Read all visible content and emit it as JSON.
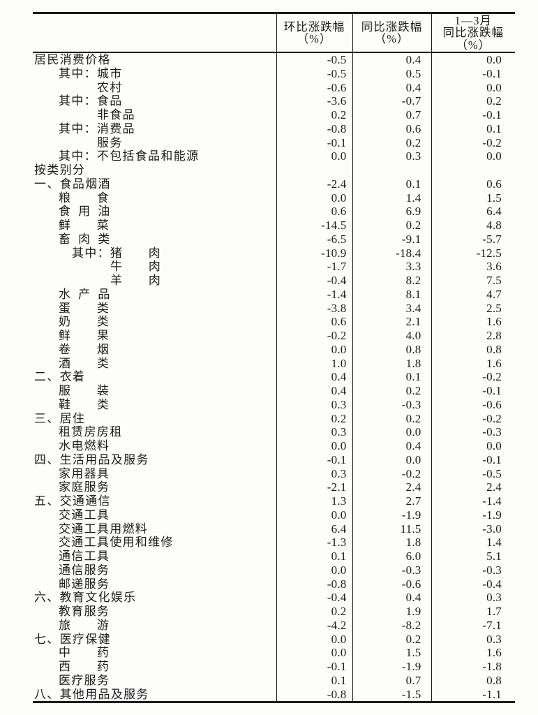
{
  "colors": {
    "background": "#fdfdfc",
    "text": "#1b1b1b",
    "rule": "#1b1b1b"
  },
  "table": {
    "title_semantic": "consumer-price-change-by-category",
    "corner_header": "",
    "columns": [
      {
        "id": "mom-change",
        "header_lines": [
          "环比涨跌幅",
          "（%）"
        ]
      },
      {
        "id": "yoy-change",
        "header_lines": [
          "同比涨跌幅",
          "（%）"
        ]
      },
      {
        "id": "ytd-yoy-change",
        "header_lines": [
          "1—3月",
          "同比涨跌幅",
          "（%）"
        ]
      }
    ],
    "rows": [
      {
        "prefix": "",
        "label": "居民消费价格",
        "level": "top",
        "values": [
          "-0.5",
          "0.4",
          "0.0"
        ]
      },
      {
        "prefix": "其中：",
        "label": "城市",
        "level": "mid",
        "values": [
          "-0.5",
          "0.5",
          "-0.1"
        ]
      },
      {
        "prefix": "",
        "label": "农村",
        "level": "mid2",
        "values": [
          "-0.6",
          "0.4",
          "0.0"
        ]
      },
      {
        "prefix": "其中：",
        "label": "食品",
        "level": "mid",
        "values": [
          "-3.6",
          "-0.7",
          "0.2"
        ]
      },
      {
        "prefix": "",
        "label": "非食品",
        "level": "mid2",
        "values": [
          "0.2",
          "0.7",
          "-0.1"
        ]
      },
      {
        "prefix": "其中：",
        "label": "消费品",
        "level": "mid",
        "values": [
          "-0.8",
          "0.6",
          "0.1"
        ]
      },
      {
        "prefix": "",
        "label": "服务",
        "level": "mid2",
        "values": [
          "-0.1",
          "0.2",
          "-0.2"
        ]
      },
      {
        "prefix": "其中：",
        "label": "不包括食品和能源",
        "level": "mid",
        "values": [
          "0.0",
          "0.3",
          "0.0"
        ]
      },
      {
        "prefix": "",
        "label": "按类别分",
        "level": "top",
        "values": [
          "",
          "",
          ""
        ]
      },
      {
        "prefix": "一、",
        "label": "食品烟酒",
        "level": "top",
        "values": [
          "-2.4",
          "0.1",
          "0.6"
        ]
      },
      {
        "prefix": "",
        "label": "粮　　食",
        "level": "mid",
        "values": [
          "0.0",
          "1.4",
          "1.5"
        ]
      },
      {
        "prefix": "",
        "label": "食 用 油",
        "level": "mid",
        "values": [
          "0.6",
          "6.9",
          "6.4"
        ]
      },
      {
        "prefix": "",
        "label": "鲜　　菜",
        "level": "mid",
        "values": [
          "-14.5",
          "0.2",
          "4.8"
        ]
      },
      {
        "prefix": "",
        "label": "畜 肉 类",
        "level": "mid",
        "values": [
          "-6.5",
          "-9.1",
          "-5.7"
        ]
      },
      {
        "prefix": "其中：",
        "label": "猪　　肉",
        "level": "deep",
        "values": [
          "-10.9",
          "-18.4",
          "-12.5"
        ]
      },
      {
        "prefix": "",
        "label": "牛　　肉",
        "level": "deep2",
        "values": [
          "-1.7",
          "3.3",
          "3.6"
        ]
      },
      {
        "prefix": "",
        "label": "羊　　肉",
        "level": "deep2",
        "values": [
          "-0.4",
          "8.2",
          "7.5"
        ]
      },
      {
        "prefix": "",
        "label": "水 产 品",
        "level": "mid",
        "values": [
          "-1.4",
          "8.1",
          "4.7"
        ]
      },
      {
        "prefix": "",
        "label": "蛋　　类",
        "level": "mid",
        "values": [
          "-3.8",
          "3.4",
          "2.5"
        ]
      },
      {
        "prefix": "",
        "label": "奶　　类",
        "level": "mid",
        "values": [
          "0.6",
          "2.1",
          "1.6"
        ]
      },
      {
        "prefix": "",
        "label": "鲜　　果",
        "level": "mid",
        "values": [
          "-0.2",
          "4.0",
          "2.8"
        ]
      },
      {
        "prefix": "",
        "label": "卷　　烟",
        "level": "mid",
        "values": [
          "0.0",
          "0.8",
          "0.8"
        ]
      },
      {
        "prefix": "",
        "label": "酒　　类",
        "level": "mid",
        "values": [
          "1.0",
          "1.8",
          "1.6"
        ]
      },
      {
        "prefix": "二、",
        "label": "衣着",
        "level": "top",
        "values": [
          "0.4",
          "0.1",
          "-0.2"
        ]
      },
      {
        "prefix": "",
        "label": "服　　装",
        "level": "mid",
        "values": [
          "0.4",
          "0.2",
          "-0.1"
        ]
      },
      {
        "prefix": "",
        "label": "鞋　　类",
        "level": "mid",
        "values": [
          "0.3",
          "-0.3",
          "-0.6"
        ]
      },
      {
        "prefix": "三、",
        "label": "居住",
        "level": "top",
        "values": [
          "0.2",
          "0.2",
          "-0.2"
        ]
      },
      {
        "prefix": "",
        "label": "租赁房房租",
        "level": "mid",
        "values": [
          "0.3",
          "0.0",
          "-0.3"
        ]
      },
      {
        "prefix": "",
        "label": "水电燃料",
        "level": "mid",
        "values": [
          "0.0",
          "0.4",
          "0.0"
        ]
      },
      {
        "prefix": "四、",
        "label": "生活用品及服务",
        "level": "top",
        "values": [
          "-0.1",
          "0.0",
          "-0.1"
        ]
      },
      {
        "prefix": "",
        "label": "家用器具",
        "level": "mid",
        "values": [
          "0.3",
          "-0.2",
          "-0.5"
        ]
      },
      {
        "prefix": "",
        "label": "家庭服务",
        "level": "mid",
        "values": [
          "-2.1",
          "2.4",
          "2.4"
        ]
      },
      {
        "prefix": "五、",
        "label": "交通通信",
        "level": "top",
        "values": [
          "1.3",
          "2.7",
          "-1.4"
        ]
      },
      {
        "prefix": "",
        "label": "交通工具",
        "level": "mid",
        "values": [
          "0.0",
          "-1.9",
          "-1.9"
        ]
      },
      {
        "prefix": "",
        "label": "交通工具用燃料",
        "level": "mid",
        "values": [
          "6.4",
          "11.5",
          "-3.0"
        ]
      },
      {
        "prefix": "",
        "label": "交通工具使用和维修",
        "level": "mid",
        "values": [
          "-1.3",
          "1.8",
          "1.4"
        ]
      },
      {
        "prefix": "",
        "label": "通信工具",
        "level": "mid",
        "values": [
          "0.1",
          "6.0",
          "5.1"
        ]
      },
      {
        "prefix": "",
        "label": "通信服务",
        "level": "mid",
        "values": [
          "0.0",
          "-0.3",
          "-0.3"
        ]
      },
      {
        "prefix": "",
        "label": "邮递服务",
        "level": "mid",
        "values": [
          "-0.8",
          "-0.6",
          "-0.4"
        ]
      },
      {
        "prefix": "六、",
        "label": "教育文化娱乐",
        "level": "top",
        "values": [
          "-0.4",
          "0.4",
          "0.3"
        ]
      },
      {
        "prefix": "",
        "label": "教育服务",
        "level": "mid",
        "values": [
          "0.2",
          "1.9",
          "1.7"
        ]
      },
      {
        "prefix": "",
        "label": "旅　　游",
        "level": "mid",
        "values": [
          "-4.2",
          "-8.2",
          "-7.1"
        ]
      },
      {
        "prefix": "七、",
        "label": "医疗保健",
        "level": "top",
        "values": [
          "0.0",
          "0.2",
          "0.3"
        ]
      },
      {
        "prefix": "",
        "label": "中　　药",
        "level": "mid",
        "values": [
          "0.0",
          "1.5",
          "1.6"
        ]
      },
      {
        "prefix": "",
        "label": "西　　药",
        "level": "mid",
        "values": [
          "-0.1",
          "-1.9",
          "-1.8"
        ]
      },
      {
        "prefix": "",
        "label": "医疗服务",
        "level": "mid",
        "values": [
          "0.1",
          "0.7",
          "0.8"
        ]
      },
      {
        "prefix": "八、",
        "label": "其他用品及服务",
        "level": "top",
        "values": [
          "-0.8",
          "-1.5",
          "-1.1"
        ]
      }
    ]
  }
}
